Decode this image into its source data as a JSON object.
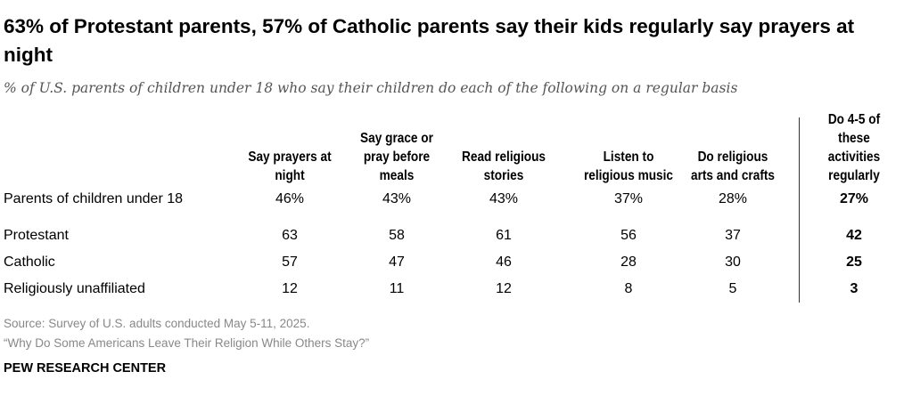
{
  "title": "63% of Protestant parents, 57% of Catholic parents say their kids regularly say prayers at night",
  "subtitle": "% of U.S. parents of children under 18 who say their children do each of the following on a regular basis",
  "chart_data": {
    "type": "table",
    "columns": [
      "Say prayers at night",
      "Say grace or pray before meals",
      "Read religious stories",
      "Listen to religious music",
      "Do religious arts and crafts",
      "Do 4-5 of these activities regularly"
    ],
    "rows": [
      {
        "label": "Parents of children under 18",
        "values": [
          "46%",
          "43%",
          "43%",
          "37%",
          "28%",
          "27%"
        ]
      },
      {
        "label": "Protestant",
        "values": [
          "63",
          "58",
          "61",
          "56",
          "37",
          "42"
        ]
      },
      {
        "label": "Catholic",
        "values": [
          "57",
          "47",
          "46",
          "28",
          "30",
          "25"
        ]
      },
      {
        "label": "Religiously unaffiliated",
        "values": [
          "12",
          "11",
          "12",
          "8",
          "5",
          "3"
        ]
      }
    ]
  },
  "source_lines": [
    "Source: Survey of U.S. adults conducted May 5-11, 2025.",
    "“Why Do Some Americans Leave Their Religion While Others Stay?”"
  ],
  "logo": "PEW RESEARCH CENTER"
}
